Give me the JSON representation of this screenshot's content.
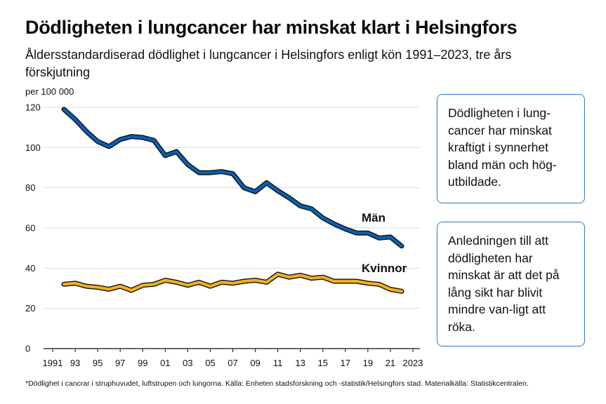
{
  "title": "Dödligheten i lungcancer har minskat klart i Helsingfors",
  "subtitle": "Åldersstandardiserad dödlighet i lungcancer i Helsingfors enligt kön 1991–2023, tre års förskjutning",
  "unit_label": "per 100 000",
  "info_box_1": "Dödligheten i lung-cancer har minskat kraftigt i synnerhet bland män och hög-utbildade.",
  "info_box_2": "Anledningen till att dödligheten har minskat är att det på lång sikt har blivit mindre van-ligt att röka.",
  "footnote": "*Dödlighet i cancrar i struphuvudet, luftstrupen och lungorna. Källa: Enheten stadsforskning och -statistik/Helsingfors stad. Materialkälla: Statistikcentralen.",
  "colors": {
    "men": "#0a5fb4",
    "women": "#f2b01e",
    "outline": "#111111",
    "box_border": "#2b7bc4",
    "grid": "#d9d9d9"
  },
  "chart_data": {
    "type": "line",
    "xlabel": "",
    "ylabel": "per 100 000",
    "ylim": [
      0,
      120
    ],
    "yticks": [
      0,
      20,
      40,
      60,
      80,
      100,
      120
    ],
    "xlim": [
      1991,
      2023
    ],
    "xtick_labels": [
      "1991",
      "93",
      "95",
      "97",
      "99",
      "01",
      "03",
      "05",
      "07",
      "09",
      "11",
      "13",
      "15",
      "17",
      "19",
      "21",
      "2023"
    ],
    "x": [
      1992,
      1993,
      1994,
      1995,
      1996,
      1997,
      1998,
      1999,
      2000,
      2001,
      2002,
      2003,
      2004,
      2005,
      2006,
      2007,
      2008,
      2009,
      2010,
      2011,
      2012,
      2013,
      2014,
      2015,
      2016,
      2017,
      2018,
      2019,
      2020,
      2021,
      2022
    ],
    "series": [
      {
        "name": "Män",
        "values": [
          119,
          114,
          108,
          103,
          100.5,
          104,
          105.5,
          105,
          103.5,
          96,
          98,
          91.5,
          87.5,
          87.5,
          88,
          87,
          80,
          78,
          82.5,
          78.5,
          75,
          71,
          69.5,
          65,
          62,
          59.5,
          57.5,
          57.5,
          55,
          55.5,
          51
        ]
      },
      {
        "name": "Kvinnor",
        "values": [
          32,
          32.5,
          31,
          30.5,
          29.5,
          31,
          29,
          31.5,
          32,
          34,
          33,
          31.5,
          33,
          31,
          33,
          32.5,
          33.5,
          34,
          33,
          37,
          35.5,
          36.5,
          35,
          35.5,
          33.5,
          33.5,
          33.5,
          32.5,
          32,
          29.5,
          28.5
        ]
      }
    ]
  }
}
